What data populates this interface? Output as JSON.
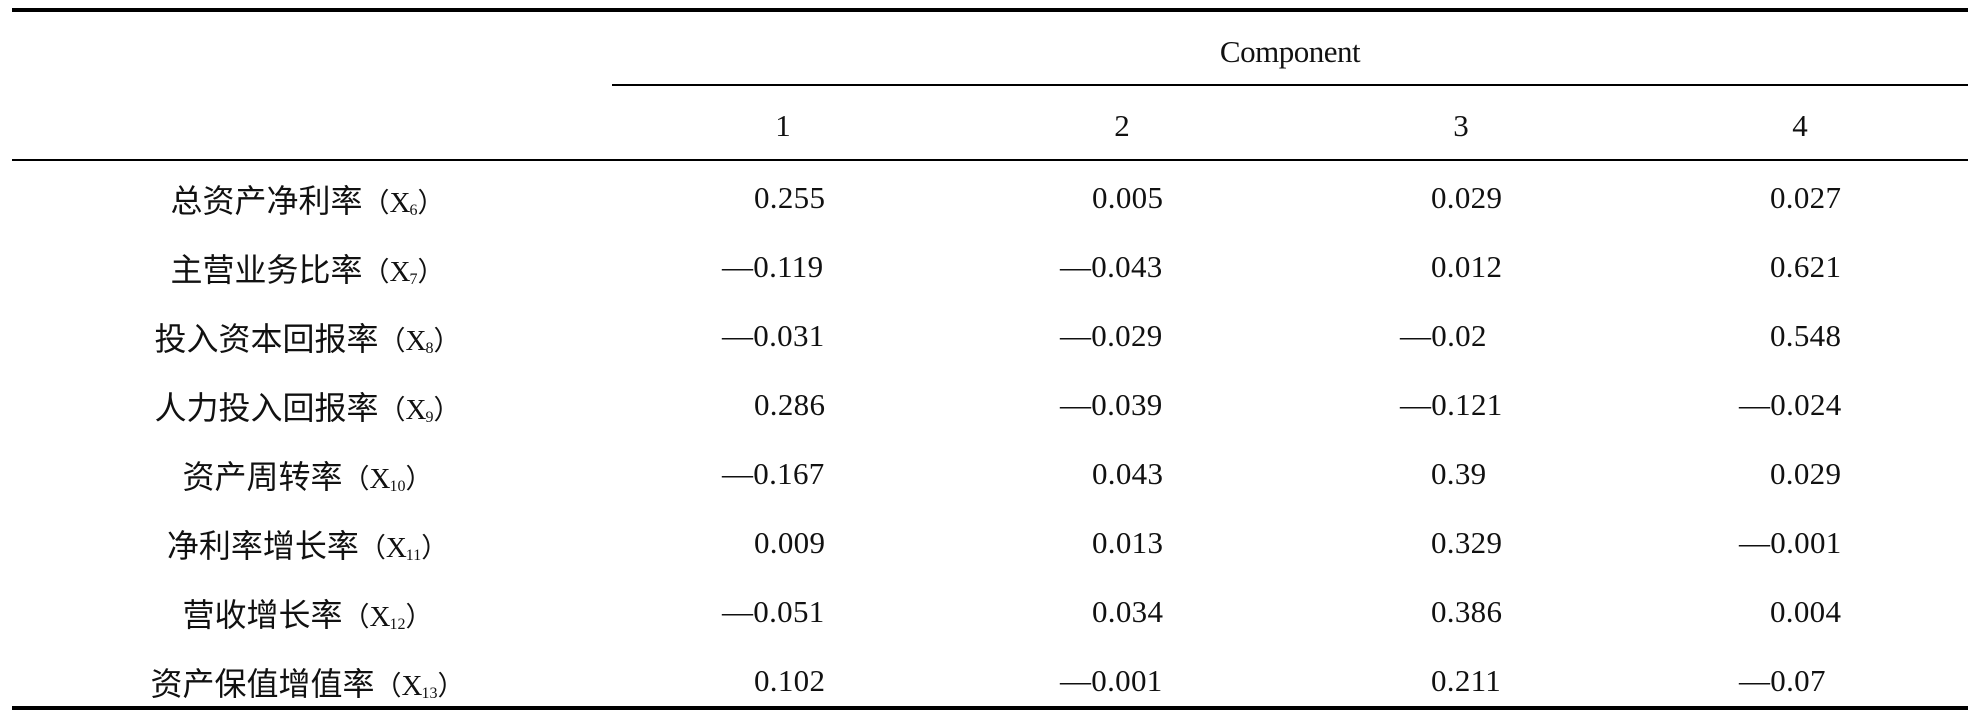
{
  "table": {
    "component_label": "Component",
    "columns": [
      "1",
      "2",
      "3",
      "4"
    ],
    "rows": [
      {
        "label": "总资产净利率",
        "var": "X",
        "sub": "6",
        "values": [
          "0.255",
          "0.005",
          "0.029",
          "0.027"
        ]
      },
      {
        "label": "主营业务比率",
        "var": "X",
        "sub": "7",
        "values": [
          "—0.119",
          "—0.043",
          "0.012",
          "0.621"
        ]
      },
      {
        "label": "投入资本回报率",
        "var": "X",
        "sub": "8",
        "values": [
          "—0.031",
          "—0.029",
          "—0.02",
          "0.548"
        ]
      },
      {
        "label": "人力投入回报率",
        "var": "X",
        "sub": "9",
        "values": [
          "0.286",
          "—0.039",
          "—0.121",
          "—0.024"
        ]
      },
      {
        "label": "资产周转率",
        "var": "X",
        "sub": "10",
        "values": [
          "—0.167",
          "0.043",
          "0.39",
          "0.029"
        ]
      },
      {
        "label": "净利率增长率",
        "var": "X",
        "sub": "11",
        "values": [
          "0.009",
          "0.013",
          "0.329",
          "—0.001"
        ]
      },
      {
        "label": "营收增长率",
        "var": "X",
        "sub": "12",
        "values": [
          "—0.051",
          "0.034",
          "0.386",
          "0.004"
        ]
      },
      {
        "label": "资产保值增值率",
        "var": "X",
        "sub": "13",
        "values": [
          "0.102",
          "—0.001",
          "0.211",
          "—0.07"
        ]
      }
    ]
  }
}
